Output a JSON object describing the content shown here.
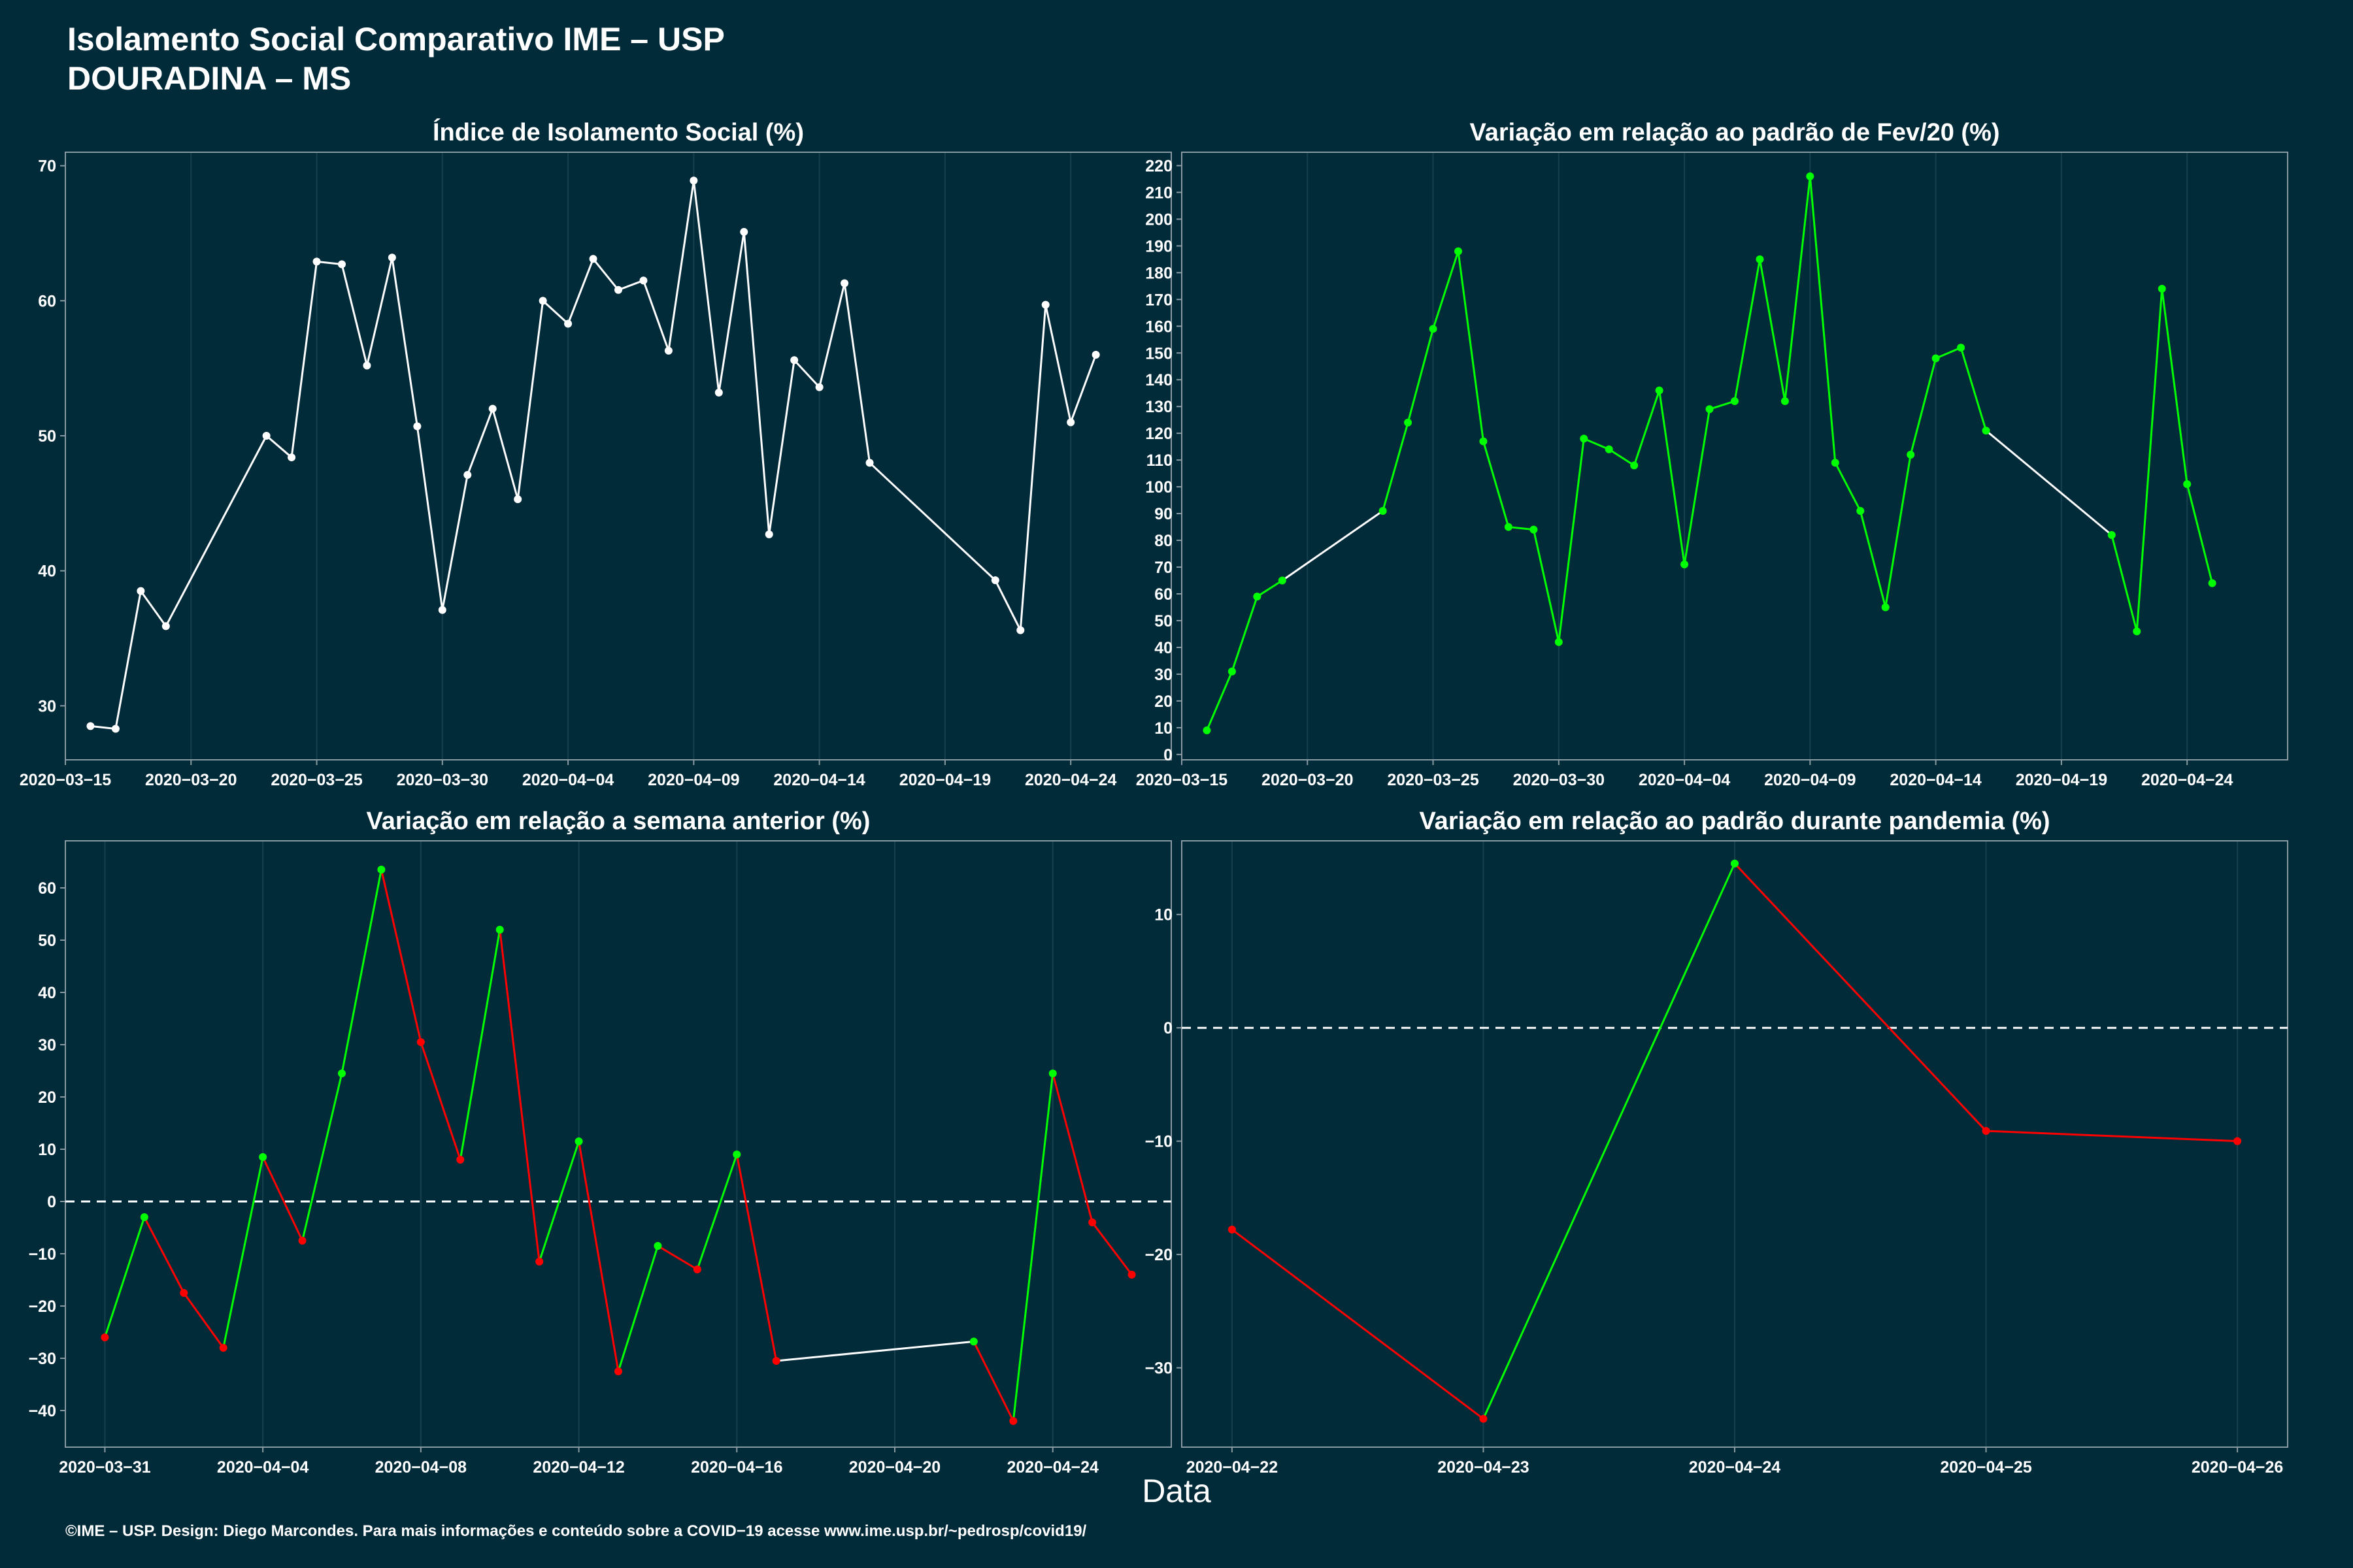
{
  "header": {
    "title_line1": "Isolamento Social Comparativo IME – USP",
    "title_line2": "DOURADINA – MS"
  },
  "x_axis_label": "Data",
  "footer": "©IME – USP. Design: Diego Marcondes. Para mais informações e conteúdo sobre a COVID−19 acesse www.ime.usp.br/~pedrosp/covid19/",
  "colors": {
    "background": "#022b3a",
    "line_white": "#ffffff",
    "line_green": "#00ff00",
    "line_red": "#ff0000",
    "axis": "#8a9aa2",
    "grid": "#17404e"
  },
  "chart_data": [
    {
      "type": "line",
      "title": "Índice de Isolamento Social (%)",
      "x_type": "date",
      "xlim": [
        "2020-03-15",
        "2020-04-28"
      ],
      "x_ticks": [
        "2020-03-15",
        "2020-03-20",
        "2020-03-25",
        "2020-03-30",
        "2020-04-04",
        "2020-04-09",
        "2020-04-14",
        "2020-04-19",
        "2020-04-24"
      ],
      "ylim": [
        26,
        71
      ],
      "y_ticks": [
        30,
        40,
        50,
        60,
        70
      ],
      "color_mode": "white",
      "points": [
        [
          "2020-03-16",
          28.5
        ],
        [
          "2020-03-17",
          28.3
        ],
        [
          "2020-03-18",
          38.5
        ],
        [
          "2020-03-19",
          35.9
        ],
        [
          "2020-03-23",
          50.0
        ],
        [
          "2020-03-24",
          48.4
        ],
        [
          "2020-03-25",
          62.9
        ],
        [
          "2020-03-26",
          62.7
        ],
        [
          "2020-03-27",
          55.2
        ],
        [
          "2020-03-28",
          63.2
        ],
        [
          "2020-03-29",
          50.7
        ],
        [
          "2020-03-30",
          37.1
        ],
        [
          "2020-03-31",
          47.1
        ],
        [
          "2020-04-01",
          52.0
        ],
        [
          "2020-04-02",
          45.3
        ],
        [
          "2020-04-03",
          60.0
        ],
        [
          "2020-04-04",
          58.3
        ],
        [
          "2020-04-05",
          63.1
        ],
        [
          "2020-04-06",
          60.8
        ],
        [
          "2020-04-07",
          61.5
        ],
        [
          "2020-04-08",
          56.3
        ],
        [
          "2020-04-09",
          68.9
        ],
        [
          "2020-04-10",
          53.2
        ],
        [
          "2020-04-11",
          65.1
        ],
        [
          "2020-04-12",
          42.7
        ],
        [
          "2020-04-13",
          55.6
        ],
        [
          "2020-04-14",
          53.6
        ],
        [
          "2020-04-15",
          61.3
        ],
        [
          "2020-04-16",
          48.0
        ],
        [
          "2020-04-21",
          39.3
        ],
        [
          "2020-04-22",
          35.6
        ],
        [
          "2020-04-23",
          59.7
        ],
        [
          "2020-04-24",
          51.0
        ],
        [
          "2020-04-25",
          56.0
        ]
      ]
    },
    {
      "type": "line",
      "title": "Variação em relação ao padrão de Fev/20 (%)",
      "x_type": "date",
      "xlim": [
        "2020-03-15",
        "2020-04-28"
      ],
      "x_ticks": [
        "2020-03-15",
        "2020-03-20",
        "2020-03-25",
        "2020-03-30",
        "2020-04-04",
        "2020-04-09",
        "2020-04-14",
        "2020-04-19",
        "2020-04-24"
      ],
      "ylim": [
        -2,
        225
      ],
      "y_ticks": [
        0,
        10,
        20,
        30,
        40,
        50,
        60,
        70,
        80,
        90,
        100,
        110,
        120,
        130,
        140,
        150,
        160,
        170,
        180,
        190,
        200,
        210,
        220
      ],
      "color_mode": "green",
      "points": [
        [
          "2020-03-16",
          9
        ],
        [
          "2020-03-17",
          31
        ],
        [
          "2020-03-18",
          59
        ],
        [
          "2020-03-19",
          65
        ],
        [
          "2020-03-23",
          91
        ],
        [
          "2020-03-24",
          124
        ],
        [
          "2020-03-25",
          159
        ],
        [
          "2020-03-26",
          188
        ],
        [
          "2020-03-27",
          117
        ],
        [
          "2020-03-28",
          85
        ],
        [
          "2020-03-29",
          84
        ],
        [
          "2020-03-30",
          42
        ],
        [
          "2020-03-31",
          118
        ],
        [
          "2020-04-01",
          114
        ],
        [
          "2020-04-02",
          108
        ],
        [
          "2020-04-03",
          136
        ],
        [
          "2020-04-04",
          71
        ],
        [
          "2020-04-05",
          129
        ],
        [
          "2020-04-06",
          132
        ],
        [
          "2020-04-07",
          185
        ],
        [
          "2020-04-08",
          132
        ],
        [
          "2020-04-09",
          216
        ],
        [
          "2020-04-10",
          109
        ],
        [
          "2020-04-11",
          91
        ],
        [
          "2020-04-12",
          55
        ],
        [
          "2020-04-13",
          112
        ],
        [
          "2020-04-14",
          148
        ],
        [
          "2020-04-15",
          152
        ],
        [
          "2020-04-16",
          121
        ],
        [
          "2020-04-21",
          82
        ],
        [
          "2020-04-22",
          46
        ],
        [
          "2020-04-23",
          174
        ],
        [
          "2020-04-24",
          101
        ],
        [
          "2020-04-25",
          64
        ]
      ]
    },
    {
      "type": "line",
      "title": "Variação em relação a semana anterior (%)",
      "x_type": "date",
      "xlim": [
        "2020-03-30",
        "2020-04-27"
      ],
      "x_ticks": [
        "2020-03-31",
        "2020-04-04",
        "2020-04-08",
        "2020-04-12",
        "2020-04-16",
        "2020-04-20",
        "2020-04-24"
      ],
      "ylim": [
        -47,
        69
      ],
      "y_ticks": [
        -40,
        -30,
        -20,
        -10,
        0,
        10,
        20,
        30,
        40,
        50,
        60
      ],
      "color_mode": "signed",
      "zero_line": true,
      "points": [
        [
          "2020-03-31",
          -26
        ],
        [
          "2020-04-01",
          -3
        ],
        [
          "2020-04-02",
          -17.5
        ],
        [
          "2020-04-03",
          -28
        ],
        [
          "2020-04-04",
          8.5
        ],
        [
          "2020-04-05",
          -7.5
        ],
        [
          "2020-04-06",
          24.5
        ],
        [
          "2020-04-07",
          63.5
        ],
        [
          "2020-04-08",
          30.5
        ],
        [
          "2020-04-09",
          8
        ],
        [
          "2020-04-10",
          52
        ],
        [
          "2020-04-11",
          -11.5
        ],
        [
          "2020-04-12",
          11.5
        ],
        [
          "2020-04-13",
          -32.5
        ],
        [
          "2020-04-14",
          -8.5
        ],
        [
          "2020-04-15",
          -13
        ],
        [
          "2020-04-16",
          9
        ],
        [
          "2020-04-17",
          -30.5
        ],
        [
          "2020-04-22",
          -26.8
        ],
        [
          "2020-04-23",
          -42
        ],
        [
          "2020-04-24",
          24.5
        ],
        [
          "2020-04-25",
          -4
        ],
        [
          "2020-04-26",
          -14
        ]
      ]
    },
    {
      "type": "line",
      "title": "Variação em relação ao padrão durante pandemia (%)",
      "x_type": "date",
      "xlim": [
        "2020-04-21.8",
        "2020-04-26.2"
      ],
      "x_ticks": [
        "2020-04-22",
        "2020-04-23",
        "2020-04-24",
        "2020-04-25",
        "2020-04-26"
      ],
      "ylim": [
        -37,
        16.5
      ],
      "y_ticks": [
        -30,
        -20,
        -10,
        0,
        10
      ],
      "color_mode": "signed",
      "zero_line": true,
      "points": [
        [
          "2020-04-22",
          -17.8
        ],
        [
          "2020-04-23",
          -34.5
        ],
        [
          "2020-04-24",
          14.5
        ],
        [
          "2020-04-25",
          -9.1
        ],
        [
          "2020-04-26",
          -10
        ]
      ]
    }
  ]
}
